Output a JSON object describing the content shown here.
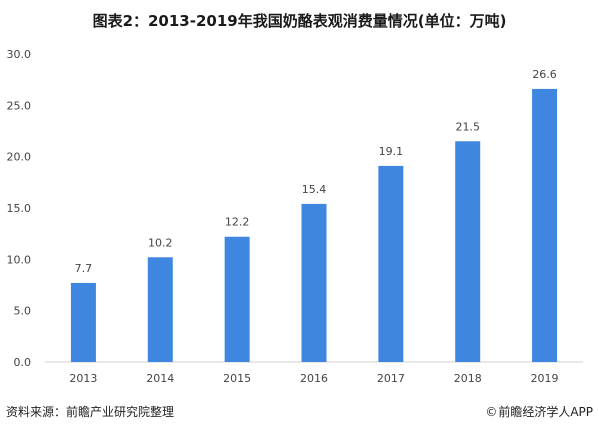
{
  "title": "图表2：2013-2019年我国奶酪表观消费量情况(单位：万吨)",
  "source": "资料来源：前瞻产业研究院整理",
  "brand": "前瞻经济学人APP",
  "colors": {
    "bar": "#3f86e0",
    "axis": "#d0d0d0",
    "text": "#444444"
  },
  "chart_data": {
    "type": "bar",
    "categories": [
      "2013",
      "2014",
      "2015",
      "2016",
      "2017",
      "2018",
      "2019"
    ],
    "values": [
      7.7,
      10.2,
      12.2,
      15.4,
      19.1,
      21.5,
      26.6
    ],
    "data_labels": [
      "7.7",
      "10.2",
      "12.2",
      "15.4",
      "19.1",
      "21.5",
      "26.6"
    ],
    "y_ticks": [
      "0.0",
      "5.0",
      "10.0",
      "15.0",
      "20.0",
      "25.0",
      "30.0"
    ],
    "ylim": [
      0,
      30
    ],
    "grid": false,
    "legend": "none"
  }
}
